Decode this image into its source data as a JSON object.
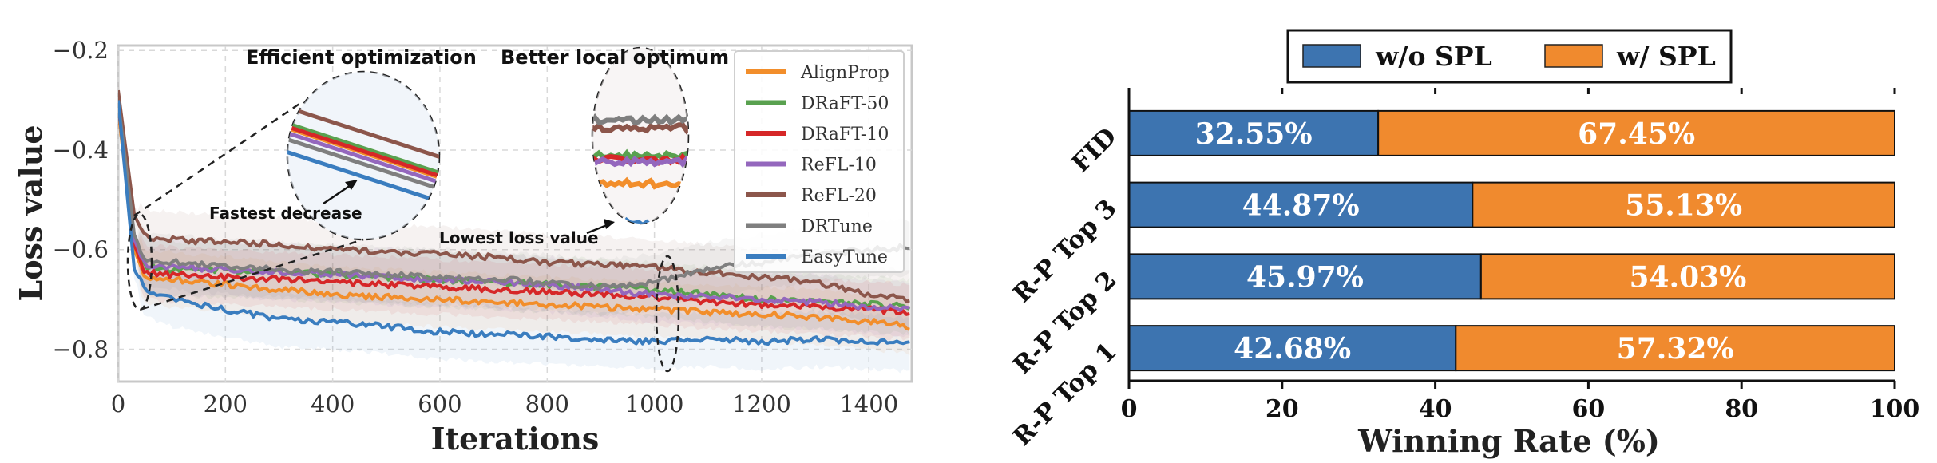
{
  "chart_data": [
    {
      "type": "line",
      "xlabel": "Iterations",
      "ylabel": "Loss value",
      "xlim": [
        0,
        1480
      ],
      "ylim": [
        -0.865,
        -0.19
      ],
      "xticks": [
        0,
        200,
        400,
        600,
        800,
        1000,
        1200,
        1400
      ],
      "yticks": [
        -0.2,
        -0.4,
        -0.6,
        -0.8
      ],
      "ytick_labels": [
        "−0.2",
        "−0.4",
        "−0.6",
        "−0.8"
      ],
      "grid": true,
      "legend_position": "top-right",
      "series": [
        {
          "name": "AlignProp",
          "color": "#F28E2B",
          "x": [
            0,
            30,
            50,
            100,
            200,
            300,
            400,
            500,
            600,
            700,
            800,
            900,
            1000,
            1100,
            1200,
            1300,
            1400,
            1480
          ],
          "y": [
            -0.32,
            -0.6,
            -0.655,
            -0.66,
            -0.67,
            -0.68,
            -0.69,
            -0.695,
            -0.7,
            -0.705,
            -0.71,
            -0.715,
            -0.72,
            -0.725,
            -0.73,
            -0.735,
            -0.745,
            -0.755
          ]
        },
        {
          "name": "DRaFT-50",
          "color": "#59A14F",
          "x": [
            0,
            30,
            50,
            100,
            200,
            300,
            400,
            500,
            600,
            700,
            800,
            900,
            1000,
            1100,
            1200,
            1300,
            1400,
            1480
          ],
          "y": [
            -0.31,
            -0.58,
            -0.635,
            -0.64,
            -0.64,
            -0.645,
            -0.65,
            -0.655,
            -0.66,
            -0.665,
            -0.67,
            -0.675,
            -0.68,
            -0.69,
            -0.7,
            -0.705,
            -0.71,
            -0.715
          ]
        },
        {
          "name": "DRaFT-10",
          "color": "#D62728",
          "x": [
            0,
            30,
            50,
            100,
            200,
            300,
            400,
            500,
            600,
            700,
            800,
            900,
            1000,
            1100,
            1200,
            1300,
            1400,
            1480
          ],
          "y": [
            -0.31,
            -0.59,
            -0.645,
            -0.65,
            -0.655,
            -0.66,
            -0.665,
            -0.67,
            -0.675,
            -0.68,
            -0.685,
            -0.69,
            -0.695,
            -0.705,
            -0.71,
            -0.715,
            -0.72,
            -0.725
          ]
        },
        {
          "name": "ReFL-10",
          "color": "#9467BD",
          "x": [
            0,
            30,
            50,
            100,
            200,
            300,
            400,
            500,
            600,
            700,
            800,
            900,
            1000,
            1100,
            1200,
            1300,
            1400,
            1480
          ],
          "y": [
            -0.3,
            -0.58,
            -0.63,
            -0.635,
            -0.64,
            -0.645,
            -0.65,
            -0.655,
            -0.66,
            -0.665,
            -0.67,
            -0.68,
            -0.69,
            -0.695,
            -0.7,
            -0.705,
            -0.715,
            -0.72
          ]
        },
        {
          "name": "ReFL-20",
          "color": "#8C564B",
          "x": [
            0,
            30,
            50,
            100,
            200,
            300,
            400,
            500,
            600,
            700,
            800,
            900,
            1000,
            1100,
            1200,
            1300,
            1400,
            1480
          ],
          "y": [
            -0.28,
            -0.53,
            -0.575,
            -0.58,
            -0.585,
            -0.59,
            -0.6,
            -0.605,
            -0.61,
            -0.615,
            -0.625,
            -0.63,
            -0.635,
            -0.645,
            -0.655,
            -0.665,
            -0.69,
            -0.7
          ]
        },
        {
          "name": "DRTune",
          "color": "#7F7F7F",
          "x": [
            0,
            30,
            50,
            100,
            200,
            300,
            400,
            500,
            600,
            700,
            800,
            900,
            1000,
            1100,
            1200,
            1300,
            1400,
            1480
          ],
          "y": [
            -0.3,
            -0.57,
            -0.62,
            -0.625,
            -0.635,
            -0.64,
            -0.645,
            -0.65,
            -0.655,
            -0.66,
            -0.665,
            -0.675,
            -0.665,
            -0.64,
            -0.625,
            -0.61,
            -0.6,
            -0.595
          ]
        },
        {
          "name": "EasyTune",
          "color": "#3A7DBF",
          "x": [
            0,
            30,
            50,
            100,
            150,
            200,
            300,
            400,
            500,
            600,
            700,
            800,
            900,
            1000,
            1100,
            1200,
            1300,
            1400,
            1480
          ],
          "y": [
            -0.3,
            -0.64,
            -0.68,
            -0.7,
            -0.71,
            -0.72,
            -0.74,
            -0.745,
            -0.755,
            -0.765,
            -0.77,
            -0.775,
            -0.78,
            -0.785,
            -0.78,
            -0.785,
            -0.78,
            -0.785,
            -0.79
          ]
        }
      ],
      "annotations": [
        "Efficient optimization",
        "Better local optimum",
        "Fastest decrease",
        "Lowest loss value"
      ]
    },
    {
      "type": "bar",
      "orientation": "horizontal",
      "stacked": true,
      "xlabel": "Winning Rate (%)",
      "xlim": [
        0,
        100
      ],
      "xticks": [
        0,
        20,
        40,
        60,
        80,
        100
      ],
      "legend_position": "top",
      "categories": [
        "FID",
        "R-P Top 3",
        "R-P Top 2",
        "R-P Top 1"
      ],
      "series": [
        {
          "name": "w/o SPL",
          "color": "#3D74B0",
          "values": [
            32.55,
            44.87,
            45.97,
            42.68
          ],
          "labels": [
            "32.55%",
            "44.87%",
            "45.97%",
            "42.68%"
          ]
        },
        {
          "name": "w/ SPL",
          "color": "#F08A2E",
          "values": [
            67.45,
            55.13,
            54.03,
            57.32
          ],
          "labels": [
            "67.45%",
            "55.13%",
            "54.03%",
            "57.32%"
          ]
        }
      ]
    }
  ]
}
